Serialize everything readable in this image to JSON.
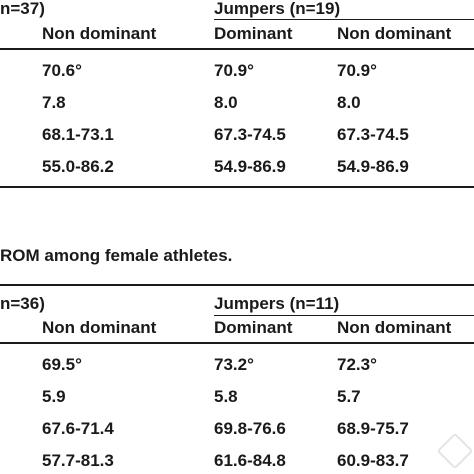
{
  "table1": {
    "left_group_header": "n=37)",
    "right_group_header": "Jumpers (n=19)",
    "subheaders": [
      "Non dominant",
      "Dominant",
      "Non dominant"
    ],
    "rows": [
      [
        "70.6°",
        "70.9°",
        "70.9°"
      ],
      [
        "7.8",
        "8.0",
        "8.0"
      ],
      [
        "68.1-73.1",
        "67.3-74.5",
        "67.3-74.5"
      ],
      [
        "55.0-86.2",
        "54.9-86.9",
        "54.9-86.9"
      ]
    ]
  },
  "caption": "ROM among female athletes.",
  "table2": {
    "left_group_header": "n=36)",
    "right_group_header": "Jumpers (n=11)",
    "subheaders": [
      "Non dominant",
      "Dominant",
      "Non dominant"
    ],
    "rows": [
      [
        "69.5°",
        "73.2°",
        "72.3°"
      ],
      [
        "5.9",
        "5.8",
        "5.7"
      ],
      [
        "67.6-71.4",
        "69.8-76.6",
        "68.9-75.7"
      ],
      [
        "57.7-81.3",
        "61.6-84.8",
        "60.9-83.7"
      ]
    ]
  }
}
